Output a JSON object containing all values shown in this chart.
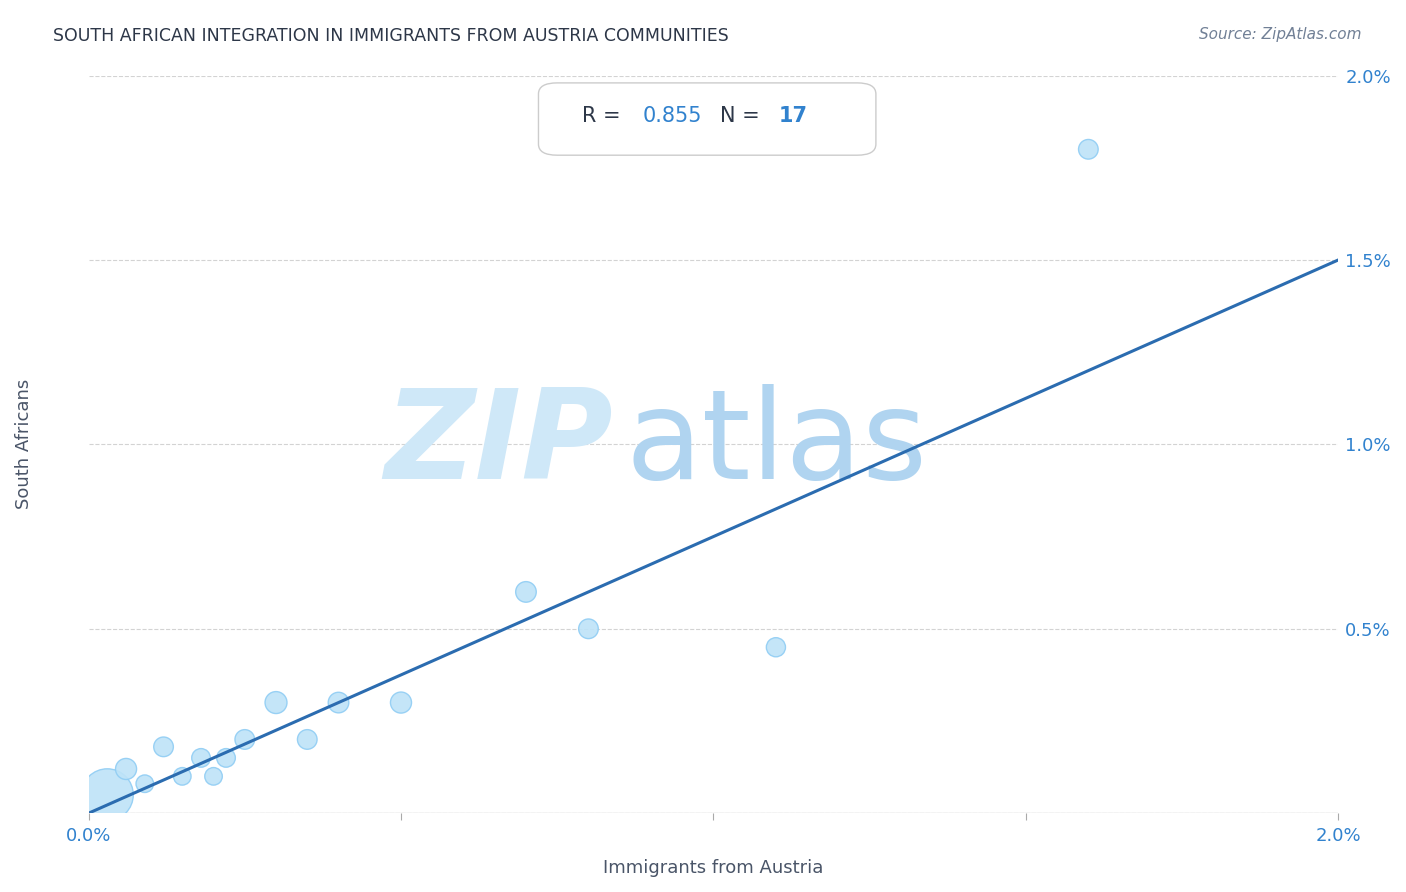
{
  "title": "SOUTH AFRICAN INTEGRATION IN IMMIGRANTS FROM AUSTRIA COMMUNITIES",
  "source": "Source: ZipAtlas.com",
  "xlabel": "Immigrants from Austria",
  "ylabel": "South Africans",
  "R": 0.855,
  "N": 17,
  "xlim": [
    0,
    0.02
  ],
  "ylim": [
    0,
    0.02
  ],
  "xticks": [
    0.0,
    0.005,
    0.01,
    0.015,
    0.02
  ],
  "yticks": [
    0.0,
    0.005,
    0.01,
    0.015,
    0.02
  ],
  "xtick_labels": [
    "0.0%",
    "",
    "",
    "",
    "2.0%"
  ],
  "ytick_labels": [
    "",
    "0.5%",
    "1.0%",
    "1.5%",
    "2.0%"
  ],
  "scatter_x": [
    0.0003,
    0.0006,
    0.0009,
    0.0012,
    0.0015,
    0.0018,
    0.002,
    0.0022,
    0.0025,
    0.003,
    0.0035,
    0.004,
    0.005,
    0.007,
    0.008,
    0.011,
    0.016
  ],
  "scatter_y": [
    0.0005,
    0.0012,
    0.0008,
    0.0018,
    0.001,
    0.0015,
    0.001,
    0.0015,
    0.002,
    0.003,
    0.002,
    0.003,
    0.003,
    0.006,
    0.005,
    0.0045,
    0.018
  ],
  "scatter_sizes": [
    1400,
    230,
    160,
    200,
    160,
    180,
    160,
    180,
    200,
    250,
    200,
    220,
    230,
    220,
    200,
    190,
    200
  ],
  "line_x0": 0.0,
  "line_y0": 0.0,
  "line_x1": 0.02,
  "line_y1": 0.015,
  "line_color": "#2b6cb0",
  "scatter_color": "#bee3f8",
  "scatter_edge_color": "#90cdf4",
  "background_color": "#ffffff",
  "grid_color": "#c8c8c8",
  "title_color": "#2d3748",
  "source_color": "#718096",
  "axis_label_color": "#4a5568",
  "tick_label_color": "#3182ce",
  "watermark_zip_color": "#cfe8f8",
  "watermark_atlas_color": "#b0d4f0",
  "annotation_box_edge": "#cccccc",
  "R_label_color": "#2d3748",
  "N_label_color": "#3182ce"
}
